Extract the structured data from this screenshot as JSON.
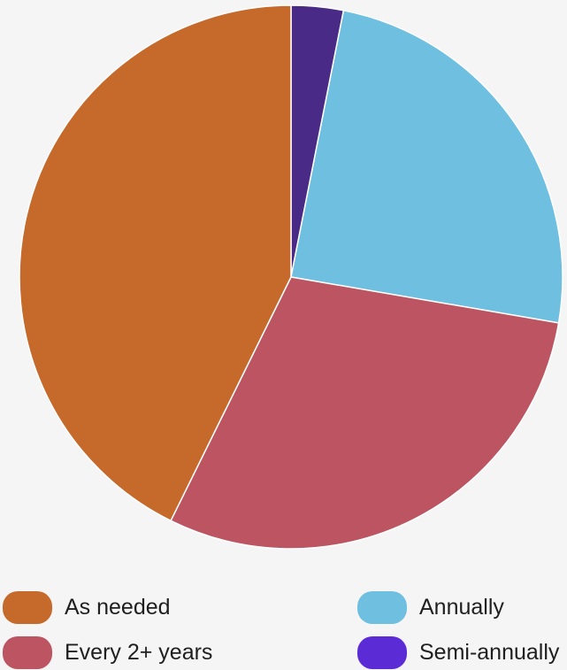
{
  "chart_data": {
    "type": "pie",
    "title": "",
    "legend_position": "bottom",
    "slices": [
      {
        "label": "Semi-annually",
        "value": 3.1,
        "color": "#4a2a87"
      },
      {
        "label": "Annually",
        "value": 24.6,
        "color": "#6fbfe0"
      },
      {
        "label": "Every 2+ years",
        "value": 29.6,
        "color": "#bc5461"
      },
      {
        "label": "As needed",
        "value": 42.7,
        "color": "#c66a2c"
      }
    ]
  },
  "legend": {
    "items": [
      {
        "label": "As needed",
        "color": "#c66a2c"
      },
      {
        "label": "Annually",
        "color": "#6fbfe0"
      },
      {
        "label": "Every 2+ years",
        "color": "#bc5461"
      },
      {
        "label": "Semi-annually",
        "color": "#5b2bd6"
      }
    ]
  }
}
